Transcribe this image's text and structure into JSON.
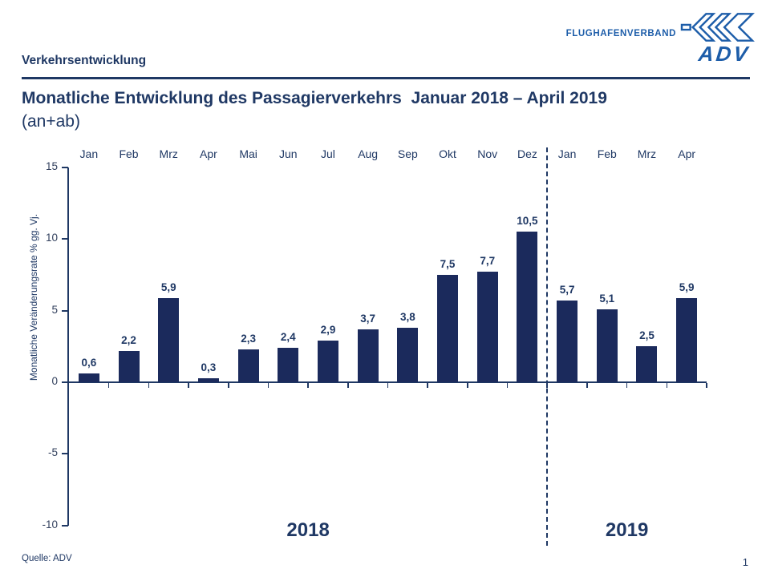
{
  "page": {
    "header_label": "Verkehrsentwicklung",
    "source": "Quelle: ADV",
    "page_number": "1"
  },
  "logo": {
    "org": "FLUGHAFENVERBAND",
    "abbr": "ADV",
    "color": "#1D5DA9"
  },
  "title": {
    "line1": "Monatliche Entwicklung des Passagierverkehrs  Januar 2018 – April 2019",
    "line2": "(an+ab)"
  },
  "chart_data": {
    "type": "bar",
    "title": "",
    "xlabel": "",
    "ylabel": "Monatliche Veränderungsrate % gg. Vj.",
    "ylim": [
      -10,
      15
    ],
    "yticks": [
      15,
      10,
      5,
      0,
      -5,
      -10
    ],
    "ytick_labels": [
      "15",
      "10",
      "5",
      "0",
      "-5",
      "-10"
    ],
    "categories": [
      "Jan",
      "Feb",
      "Mrz",
      "Apr",
      "Mai",
      "Jun",
      "Jul",
      "Aug",
      "Sep",
      "Okt",
      "Nov",
      "Dez",
      "Jan",
      "Feb",
      "Mrz",
      "Apr"
    ],
    "values": [
      0.6,
      2.2,
      5.9,
      0.3,
      2.3,
      2.4,
      2.9,
      3.7,
      3.8,
      7.5,
      7.7,
      10.5,
      5.7,
      5.1,
      2.5,
      5.9
    ],
    "value_labels": [
      "0,6",
      "2,2",
      "5,9",
      "0,3",
      "2,3",
      "2,4",
      "2,9",
      "3,7",
      "3,8",
      "7,5",
      "7,7",
      "10,5",
      "5,7",
      "5,1",
      "2,5",
      "5,9"
    ],
    "separator_after_index": 11,
    "group_labels": [
      "2018",
      "2019"
    ],
    "grid": false,
    "legend": "none",
    "bar_color": "#1B2A5C",
    "text_color": "#1F3864"
  }
}
